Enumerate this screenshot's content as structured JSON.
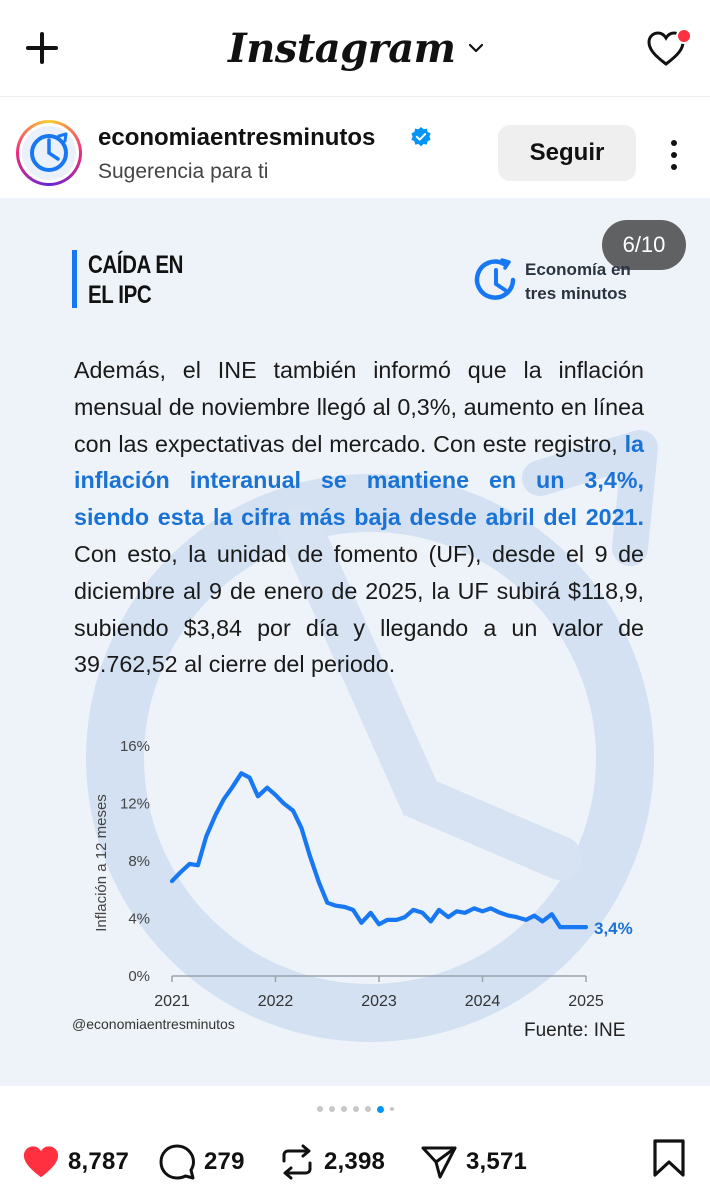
{
  "app": {
    "name": "Instagram"
  },
  "post": {
    "username": "economiaentresminutos",
    "subtitle": "Sugerencia para ti",
    "follow_label": "Seguir",
    "slide_counter": "6/10",
    "section_title": "CAÍDA EN\nEL IPC",
    "brand_name": "Economía en\ntres minutos",
    "paragraph_part1": "Además, el INE también informó que la inflación mensual de noviembre llegó al 0,3%, aumento en línea con las expectativas del mercado. Con este registro, ",
    "paragraph_highlight": "la inflación interanual se mantiene en un 3,4%, siendo esta la cifra más baja desde abril del 2021.",
    "paragraph_part2": " Con esto, la unidad de fomento (UF), desde el 9 de diciembre al 9 de enero de 2025, la UF subirá $118,9, subiendo $3,84 por día y llegando a un valor de 39.762,52 al cierre del periodo.",
    "handle": "@economiaentresminutos",
    "source": "Fuente: INE",
    "carousel": {
      "total": 10,
      "current": 6
    }
  },
  "actions": {
    "likes": "8,787",
    "comments": "279",
    "reposts": "2,398",
    "shares": "3,571"
  },
  "colors": {
    "accent": "#1877f2",
    "highlight": "#1a73d4",
    "like": "#ff3040",
    "line": "#1877f2"
  },
  "icons": {
    "new_post": "plus-icon",
    "dropdown": "chevron-down-icon",
    "notifications": "heart-outline-icon",
    "verified": "verified-badge-icon",
    "more": "more-vertical-icon",
    "like": "heart-filled-icon",
    "comment": "comment-bubble-icon",
    "repost": "repost-icon",
    "share": "send-icon",
    "save": "bookmark-icon"
  },
  "chart_data": {
    "type": "line",
    "ylabel": "Inflación a 12 meses",
    "xlabel": "",
    "y_ticks": [
      "16%",
      "12%",
      "8%",
      "4%",
      "0%"
    ],
    "x_ticks": [
      "2021",
      "2022",
      "2023",
      "2024",
      "2025"
    ],
    "ylim": [
      0,
      16
    ],
    "xlim": [
      2021,
      2025
    ],
    "end_label": "3,4%",
    "series": [
      {
        "x": [
          2021.0,
          2021.08,
          2021.17,
          2021.25,
          2021.33,
          2021.42,
          2021.5,
          2021.58,
          2021.67,
          2021.75,
          2021.83,
          2021.92,
          2022.0,
          2022.08,
          2022.17,
          2022.25,
          2022.33,
          2022.42,
          2022.5,
          2022.58,
          2022.67,
          2022.75,
          2022.83,
          2022.92,
          2023.0,
          2023.08,
          2023.17,
          2023.25,
          2023.33,
          2023.42,
          2023.5,
          2023.58,
          2023.67,
          2023.75,
          2023.83,
          2023.92,
          2024.0,
          2024.08,
          2024.17,
          2024.25,
          2024.33,
          2024.42,
          2024.5,
          2024.58,
          2024.67,
          2024.75,
          2024.83,
          2024.92,
          2025.0
        ],
        "y": [
          6.6,
          7.2,
          7.8,
          7.7,
          9.7,
          11.2,
          12.3,
          13.1,
          14.1,
          13.8,
          12.5,
          13.1,
          12.6,
          12.0,
          11.5,
          10.3,
          8.4,
          6.5,
          5.1,
          4.9,
          4.8,
          4.6,
          3.7,
          4.4,
          3.6,
          3.9,
          3.9,
          4.1,
          4.6,
          4.4,
          3.8,
          4.6,
          4.1,
          4.5,
          4.4,
          4.7,
          4.5,
          4.7,
          4.4,
          4.2,
          4.1,
          3.9,
          4.2,
          3.8,
          4.3,
          3.4,
          3.4,
          3.4,
          3.4
        ]
      }
    ]
  }
}
